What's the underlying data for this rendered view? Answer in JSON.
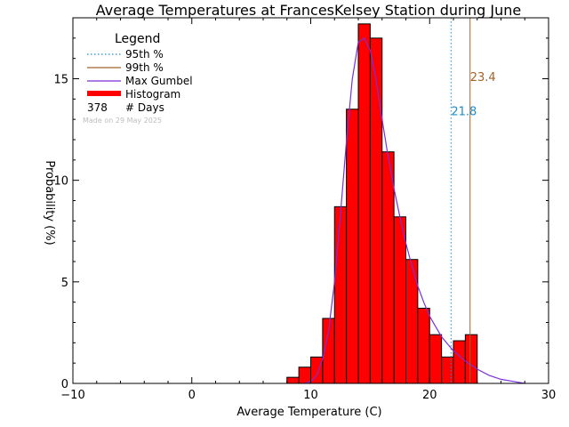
{
  "chart_data": {
    "type": "bar",
    "title": "Average Temperatures at FrancesKelsey Station during June",
    "xlabel": "Average Temperature (C)",
    "ylabel": "Probability (%)",
    "xlim": [
      -10,
      30
    ],
    "ylim": [
      0,
      18
    ],
    "x_ticks": [
      -10,
      0,
      10,
      20,
      30
    ],
    "y_ticks": [
      0,
      5,
      10,
      15
    ],
    "bin_width": 1,
    "bin_left_edges": [
      8,
      9,
      10,
      11,
      12,
      13,
      14,
      15,
      16,
      17,
      18,
      19,
      20,
      21,
      22,
      23
    ],
    "probabilities": [
      0.3,
      0.8,
      1.3,
      3.2,
      8.7,
      13.5,
      17.7,
      17.0,
      11.4,
      8.2,
      6.1,
      3.7,
      2.4,
      1.3,
      2.1,
      2.4
    ],
    "gumbel_curve": {
      "x": [
        9.5,
        10,
        10.5,
        11,
        11.5,
        12,
        12.5,
        13,
        13.5,
        14,
        14.5,
        15,
        15.5,
        16,
        16.5,
        17,
        17.5,
        18,
        18.5,
        19,
        19.5,
        20,
        21,
        22,
        23,
        24,
        25,
        26,
        27,
        28
      ],
      "y": [
        0.0,
        0.1,
        0.4,
        1.2,
        2.6,
        5.0,
        8.3,
        11.9,
        15.0,
        16.8,
        17.0,
        16.4,
        14.9,
        13.0,
        11.2,
        9.6,
        8.2,
        6.9,
        5.8,
        4.8,
        4.0,
        3.3,
        2.3,
        1.6,
        1.1,
        0.7,
        0.4,
        0.2,
        0.1,
        0.0
      ]
    },
    "p95": 21.8,
    "p99": 23.4,
    "p95_label": "21.8",
    "p99_label": "23.4",
    "legend": {
      "title": "Legend",
      "placement": "top-left",
      "p95_label": "95th %",
      "p99_label": "99th %",
      "gumbel_label": "Max Gumbel",
      "histogram_label": "Histogram",
      "days_count": "378",
      "days_label": "# Days",
      "made_on": "Made on 29 May 2025"
    },
    "colors": {
      "histogram": "#ff0000",
      "gumbel": "#7b2fd8",
      "p95": "#1e8cc8",
      "p99": "#a0642d"
    }
  }
}
